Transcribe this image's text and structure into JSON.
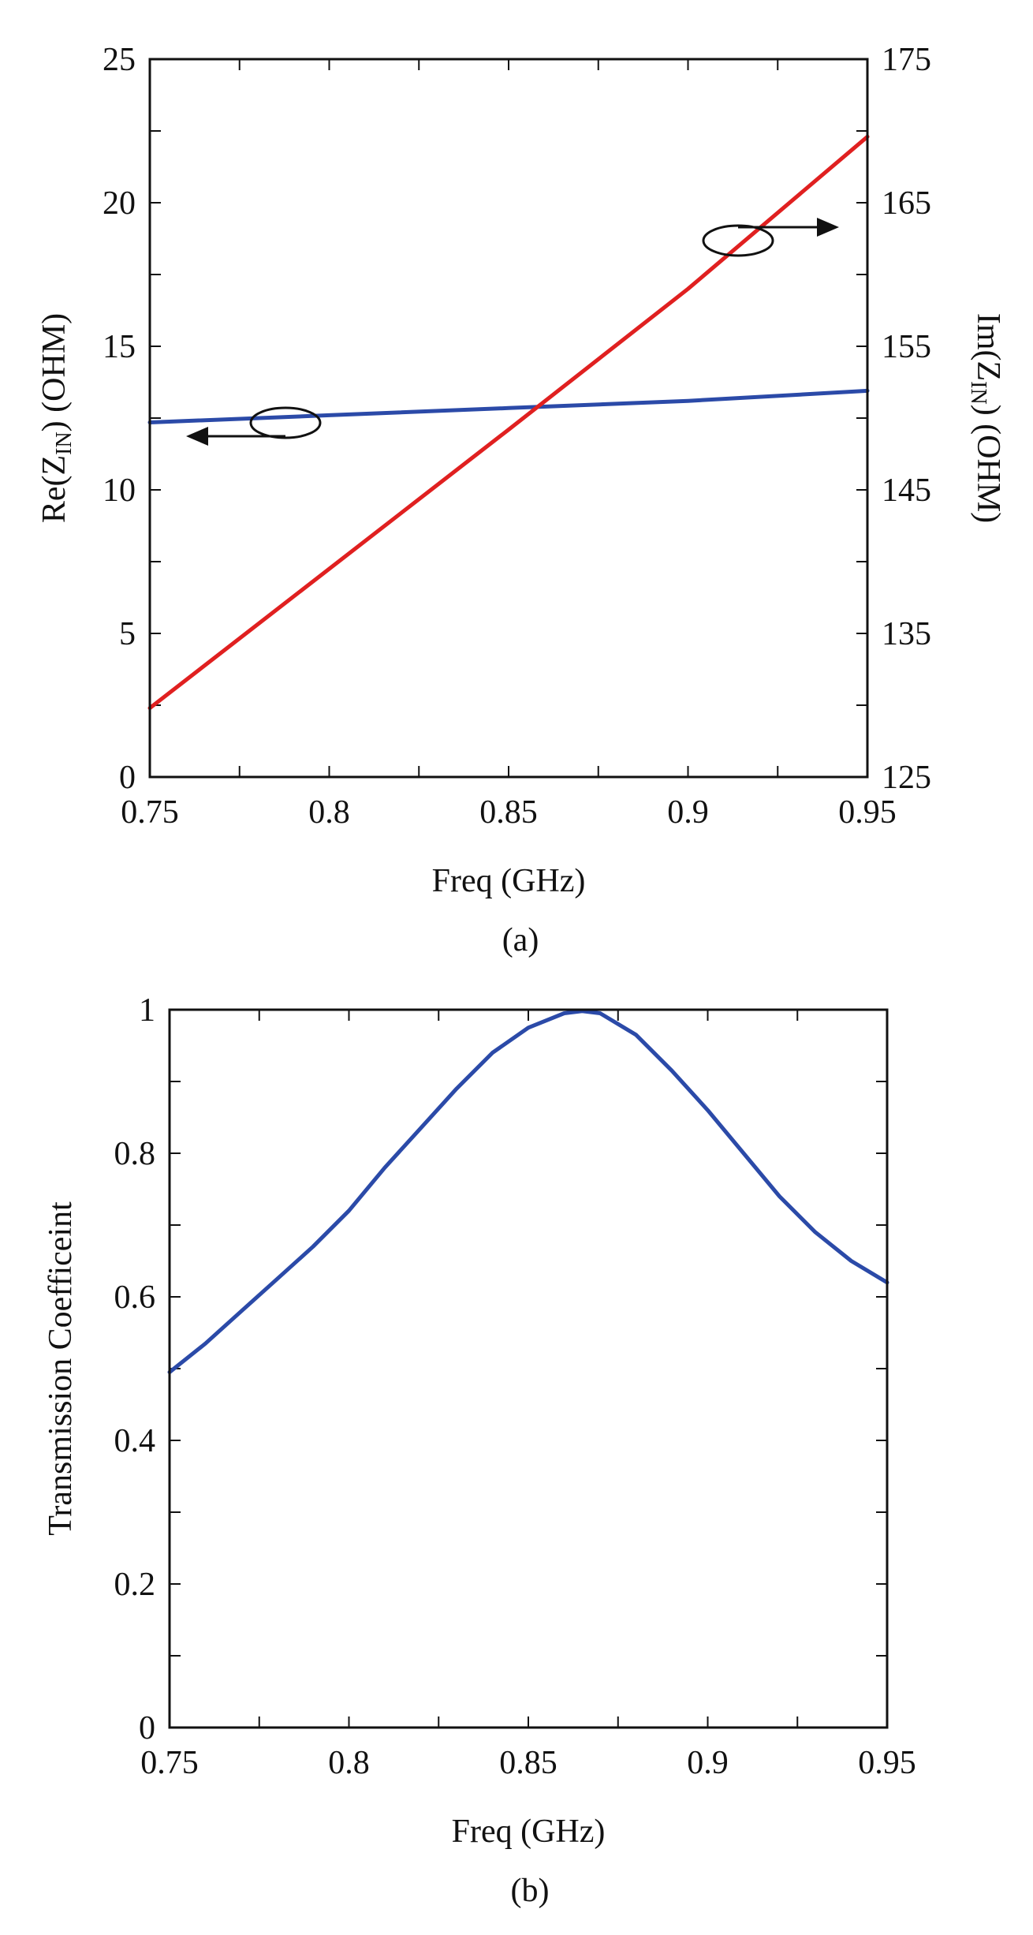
{
  "colors": {
    "red_series": "#e02020",
    "blue_series": "#2b4aa8",
    "axes": "#111111",
    "background": "#ffffff"
  },
  "chart_data": [
    {
      "type": "line",
      "caption": "(a)",
      "xlabel": "Freq (GHz)",
      "ylabel_left": {
        "main": "Re(Z",
        "sub": "IN",
        "tail": ") (OHM)"
      },
      "ylabel_right": {
        "main": "Im(Z",
        "sub": "IN",
        "tail": ") (OHM)"
      },
      "xlim": [
        0.75,
        0.95
      ],
      "ylim_left": [
        0,
        25
      ],
      "ylim_right": [
        125,
        175
      ],
      "x_ticks": [
        "0.75",
        "0.8",
        "0.85",
        "0.9",
        "0.95"
      ],
      "y_ticks_left": [
        "0",
        "5",
        "10",
        "15",
        "20",
        "25"
      ],
      "y_ticks_right": [
        "125",
        "135",
        "145",
        "155",
        "165",
        "175"
      ],
      "grid": false,
      "series": [
        {
          "axis": "left",
          "color": "#2b4aa8",
          "x": [
            0.75,
            0.8,
            0.85,
            0.9,
            0.95
          ],
          "y": [
            12.35,
            12.6,
            12.85,
            13.1,
            13.45
          ]
        },
        {
          "axis": "right",
          "color": "#e02020",
          "x": [
            0.75,
            0.8,
            0.85,
            0.9,
            0.95
          ],
          "y": [
            129.8,
            139.5,
            149.2,
            159.0,
            169.6
          ]
        }
      ]
    },
    {
      "type": "line",
      "caption": "(b)",
      "xlabel": "Freq (GHz)",
      "ylabel": "Transmission Coefficeint",
      "xlim": [
        0.75,
        0.95
      ],
      "ylim": [
        0,
        1
      ],
      "x_ticks": [
        "0.75",
        "0.8",
        "0.85",
        "0.9",
        "0.95"
      ],
      "y_ticks": [
        "0",
        "0.2",
        "0.4",
        "0.6",
        "0.8",
        "1"
      ],
      "grid": false,
      "series": [
        {
          "color": "#2b4aa8",
          "x": [
            0.75,
            0.76,
            0.77,
            0.78,
            0.79,
            0.8,
            0.81,
            0.82,
            0.83,
            0.84,
            0.85,
            0.86,
            0.865,
            0.87,
            0.88,
            0.89,
            0.9,
            0.91,
            0.92,
            0.93,
            0.94,
            0.95
          ],
          "y": [
            0.495,
            0.535,
            0.58,
            0.625,
            0.67,
            0.72,
            0.78,
            0.835,
            0.89,
            0.94,
            0.975,
            0.995,
            0.998,
            0.995,
            0.965,
            0.915,
            0.86,
            0.8,
            0.74,
            0.69,
            0.65,
            0.62
          ]
        }
      ]
    }
  ]
}
